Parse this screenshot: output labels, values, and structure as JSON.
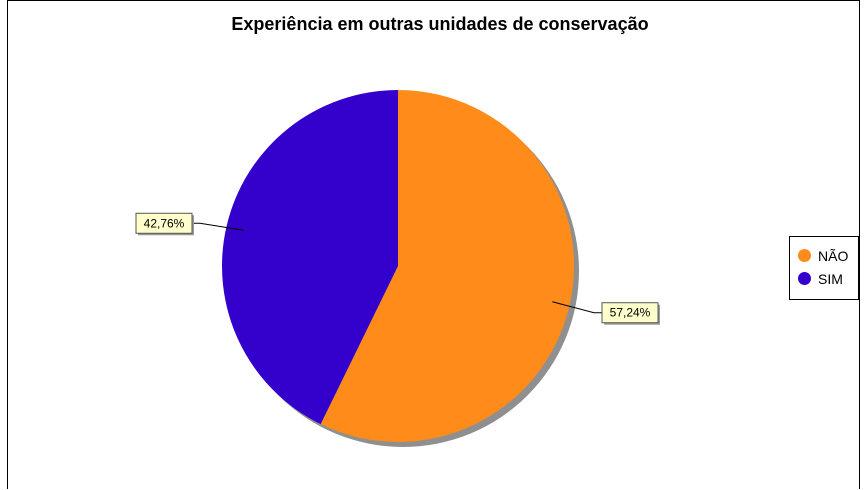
{
  "chart_data": {
    "type": "pie",
    "title": "Experiência em outras unidades de conservação",
    "slices": [
      {
        "label": "NÃO",
        "value": 57.24,
        "display": "57,24%",
        "color": "#FF8C1A"
      },
      {
        "label": "SIM",
        "value": 42.76,
        "display": "42,76%",
        "color": "#3300CC"
      }
    ],
    "start_angle": "12 o'clock",
    "direction": "clockwise",
    "legend": "right",
    "label_box_color": "#FFFFCC"
  }
}
